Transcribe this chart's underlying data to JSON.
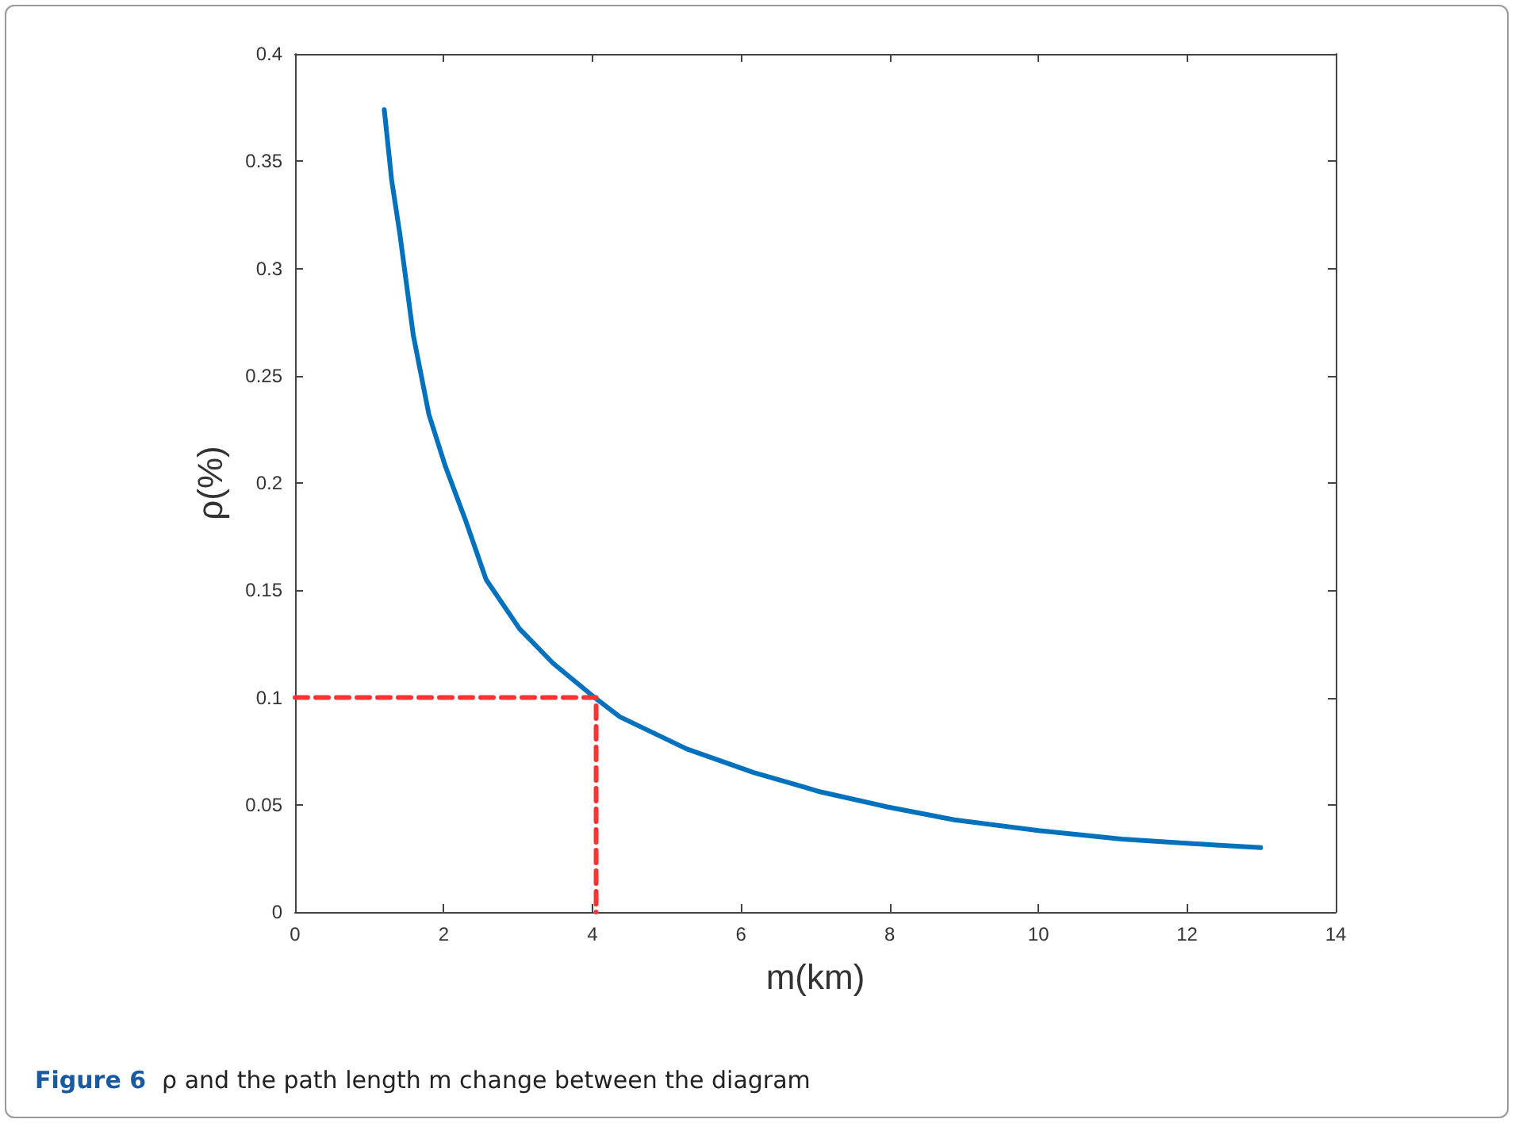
{
  "chart_data": {
    "type": "line",
    "xlabel": "m(km)",
    "ylabel": "ρ(%)",
    "annotations": [
      "Figure 6",
      "ρ and the path length m change between the diagram"
    ],
    "xlim": [
      0,
      14
    ],
    "xticks": [
      0,
      2,
      4,
      6,
      8,
      10,
      12,
      14
    ],
    "ylim": [
      0,
      0.4
    ],
    "yticks": [
      0,
      0.05,
      0.1,
      0.15,
      0.2,
      0.25,
      0.3,
      0.35,
      0.4
    ],
    "grid": false,
    "marker": "none",
    "series": [
      {
        "color": "#0072bd",
        "line_style": "solid",
        "x": [
          1.2,
          1.3,
          1.41,
          1.59,
          1.8,
          2.02,
          2.3,
          2.57,
          3.02,
          3.47,
          4.03,
          4.37,
          5.27,
          6.17,
          7.07,
          7.97,
          8.87,
          10.0,
          11.12,
          12.03,
          12.99
        ],
        "values": [
          0.374,
          0.341,
          0.316,
          0.269,
          0.232,
          0.208,
          0.182,
          0.155,
          0.132,
          0.116,
          0.1,
          0.091,
          0.076,
          0.065,
          0.056,
          0.049,
          0.043,
          0.038,
          0.034,
          0.032,
          0.03
        ]
      },
      {
        "color": "#ff3333",
        "line_style": "dashed",
        "x": [
          0,
          4.05,
          4.05
        ],
        "values": [
          0.1,
          0.1,
          0
        ]
      }
    ]
  }
}
